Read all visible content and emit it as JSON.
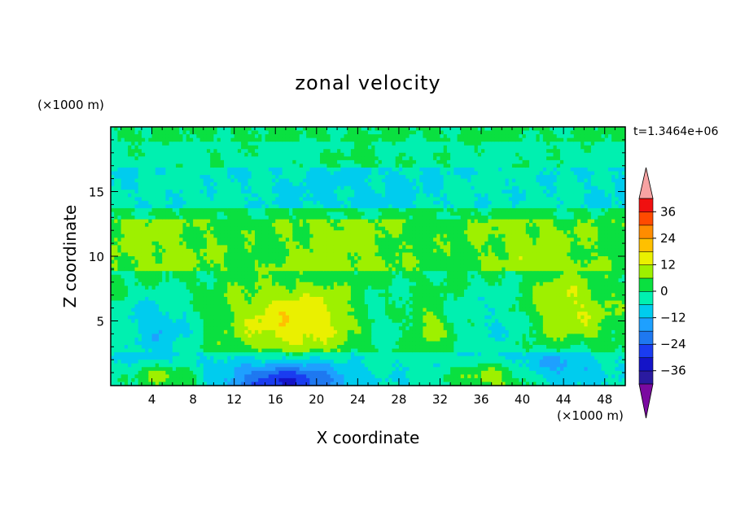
{
  "chart_data": {
    "type": "heatmap",
    "title": "zonal velocity",
    "xlabel": "X coordinate",
    "ylabel": "Z coordinate",
    "x_units": "(×1000 m)",
    "y_units": "(×1000 m)",
    "time_label": "t=1.3464e+06",
    "xlim": [
      0,
      50
    ],
    "ylim": [
      0,
      20
    ],
    "x_ticks": [
      4,
      8,
      12,
      16,
      20,
      24,
      28,
      32,
      36,
      40,
      44,
      48
    ],
    "y_ticks": [
      5,
      10,
      15
    ],
    "colorbar": {
      "ticks": [
        36,
        24,
        12,
        0,
        -12,
        -24,
        -36
      ],
      "levels": [
        -42,
        -36,
        -30,
        -24,
        -18,
        -12,
        -6,
        0,
        6,
        12,
        18,
        24,
        30,
        36,
        42
      ],
      "colors": [
        "#6a0d8f",
        "#2a1aa0",
        "#1414c8",
        "#1a3cf0",
        "#1e78f0",
        "#1ea0ff",
        "#00ccee",
        "#00f0b0",
        "#0ae040",
        "#9ef000",
        "#eaf000",
        "#ffc000",
        "#ff8c00",
        "#ff4a00",
        "#f01010",
        "#ff9aa0"
      ],
      "under_color": "#7a0aa0",
      "over_color": "#f7a3a3"
    },
    "field_features": [
      {
        "x": 18,
        "z": 5.0,
        "value": 16,
        "rx": 6.5,
        "rz": 2.8
      },
      {
        "x": 17,
        "z": 0.3,
        "value": -26,
        "rx": 6.0,
        "rz": 1.6
      },
      {
        "x": 5.5,
        "z": 0.6,
        "value": 14,
        "rx": 3.2,
        "rz": 1.0
      },
      {
        "x": 37,
        "z": 0.6,
        "value": 14,
        "rx": 4.0,
        "rz": 1.1
      },
      {
        "x": 4.5,
        "z": 4.5,
        "value": -12,
        "rx": 4.0,
        "rz": 2.5
      },
      {
        "x": 44,
        "z": 6.0,
        "value": 12,
        "rx": 4.5,
        "rz": 2.8
      },
      {
        "x": 31,
        "z": 4.5,
        "value": 9,
        "rx": 1.6,
        "rz": 1.6
      },
      {
        "x": 38,
        "z": 5.0,
        "value": -8,
        "rx": 4.0,
        "rz": 3.0
      },
      {
        "x": 44,
        "z": 1.5,
        "value": -10,
        "rx": 4.0,
        "rz": 1.4
      },
      {
        "x": 26,
        "z": 5.0,
        "value": -6,
        "rx": 3.0,
        "rz": 2.5
      },
      {
        "x": 25,
        "z": 17.5,
        "value": 4,
        "rx": 3.5,
        "rz": 0.8
      }
    ]
  }
}
